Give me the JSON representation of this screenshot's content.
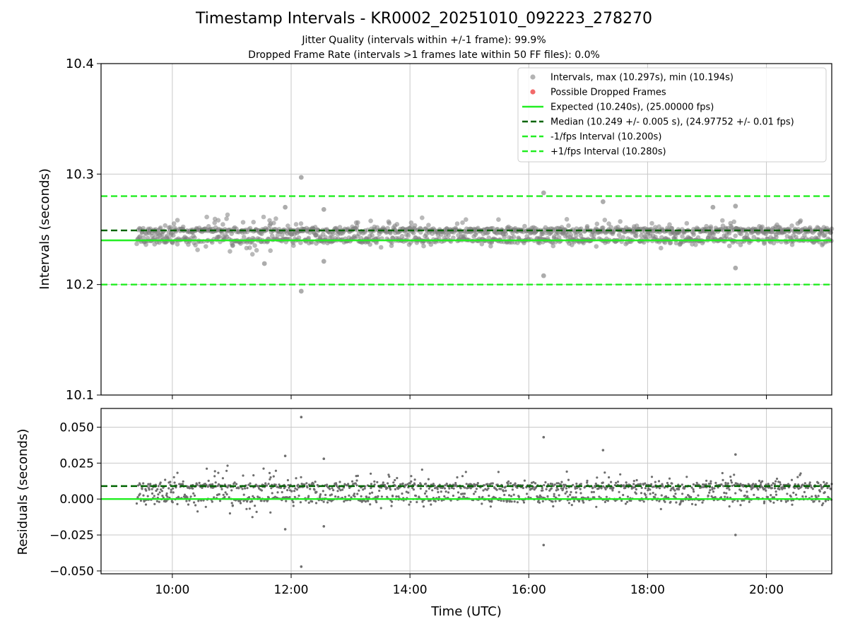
{
  "chart_data": [
    {
      "type": "scatter",
      "title": "Timestamp Intervals - KR0002_20251010_092223_278270",
      "subtitle_1": "Jitter Quality (intervals within +/-1 frame): 99.9%",
      "subtitle_2": "Dropped Frame Rate (intervals >1 frames late within 50 FF files): 0.0%",
      "ylabel": "Intervals (seconds)",
      "xlabel": "",
      "xlim_hours": [
        8.8,
        21.1
      ],
      "ylim": [
        10.1,
        10.4
      ],
      "yticks": [
        "10.1",
        "10.2",
        "10.3",
        "10.4"
      ],
      "yticks_values": [
        10.1,
        10.2,
        10.3,
        10.4
      ],
      "grid": true,
      "legend_position": "top-right",
      "legend": [
        {
          "label": "Intervals, max (10.297s), min (10.194s)",
          "kind": "marker",
          "color": "#808080"
        },
        {
          "label": "Possible Dropped Frames",
          "kind": "marker",
          "color": "#f05050"
        },
        {
          "label": "Expected (10.240s), (25.00000 fps)",
          "kind": "solid",
          "color": "#22ee22"
        },
        {
          "label": "Median (10.249 +/- 0.005 s), (24.97752 +/- 0.01 fps)",
          "kind": "dashed",
          "color": "#006400"
        },
        {
          "label": "-1/fps Interval (10.200s)",
          "kind": "dashed",
          "color": "#22ee22"
        },
        {
          "label": "+1/fps Interval (10.280s)",
          "kind": "dashed",
          "color": "#22ee22"
        }
      ],
      "expected": 10.24,
      "median": 10.249,
      "minus_interval": 10.2,
      "plus_interval": 10.28,
      "max_interval": 10.297,
      "min_interval": 10.194,
      "data_start_hour": 9.4,
      "data_end_hour": 21.1,
      "outliers": [
        {
          "x": 12.17,
          "y": 10.297
        },
        {
          "x": 12.17,
          "y": 10.194
        },
        {
          "x": 16.25,
          "y": 10.283
        },
        {
          "x": 16.25,
          "y": 10.208
        },
        {
          "x": 11.9,
          "y": 10.27
        },
        {
          "x": 12.55,
          "y": 10.268
        },
        {
          "x": 12.55,
          "y": 10.221
        },
        {
          "x": 17.25,
          "y": 10.275
        },
        {
          "x": 19.48,
          "y": 10.271
        },
        {
          "x": 19.48,
          "y": 10.215
        },
        {
          "x": 11.55,
          "y": 10.219
        },
        {
          "x": 19.1,
          "y": 10.27
        }
      ]
    },
    {
      "type": "scatter",
      "ylabel": "Residuals (seconds)",
      "xlabel": "Time (UTC)",
      "xlim_hours": [
        8.8,
        21.1
      ],
      "ylim": [
        -0.052,
        0.063
      ],
      "yticks": [
        "−0.050",
        "−0.025",
        "0.000",
        "0.025",
        "0.050"
      ],
      "yticks_values": [
        -0.05,
        -0.025,
        0.0,
        0.025,
        0.05
      ],
      "xticks": [
        "10:00",
        "12:00",
        "14:00",
        "16:00",
        "18:00",
        "20:00"
      ],
      "xticks_values": [
        10,
        12,
        14,
        16,
        18,
        20
      ],
      "grid": true,
      "zero_line": 0.0,
      "median_line": 0.009,
      "outliers": [
        {
          "x": 12.17,
          "y": 0.057
        },
        {
          "x": 12.17,
          "y": -0.047
        },
        {
          "x": 16.25,
          "y": 0.043
        },
        {
          "x": 16.25,
          "y": -0.032
        },
        {
          "x": 17.25,
          "y": 0.034
        },
        {
          "x": 19.48,
          "y": 0.031
        },
        {
          "x": 19.48,
          "y": -0.025
        },
        {
          "x": 12.55,
          "y": 0.028
        },
        {
          "x": 12.55,
          "y": -0.019
        },
        {
          "x": 11.9,
          "y": 0.03
        },
        {
          "x": 11.9,
          "y": -0.021
        }
      ]
    }
  ]
}
